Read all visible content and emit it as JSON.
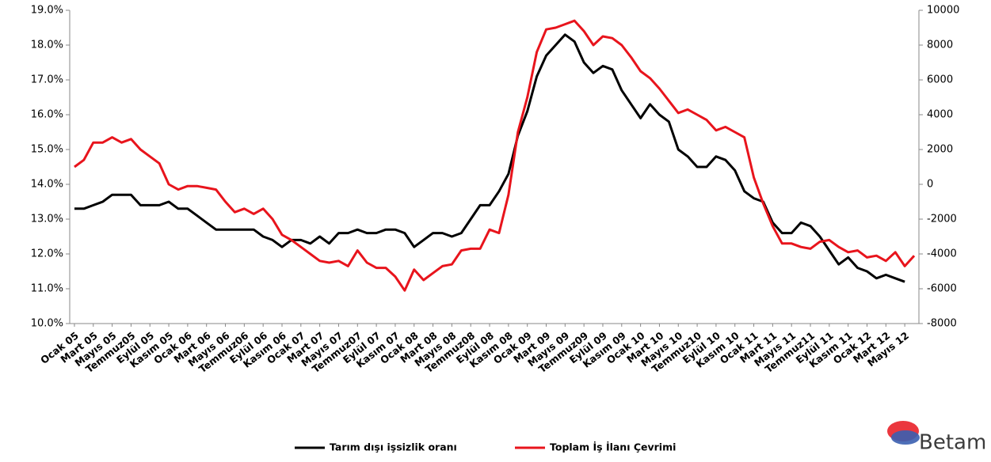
{
  "chart_data": {
    "type": "line",
    "categories": [
      "Ocak 05",
      null,
      "Mart 05",
      null,
      "Mayıs 05",
      null,
      "Temmuz05",
      null,
      "Eylül 05",
      null,
      "Kasım 05",
      null,
      "Ocak 06",
      null,
      "Mart 06",
      null,
      "Mayıs 06",
      null,
      "Temmuz06",
      null,
      "Eylül 06",
      null,
      "Kasım 06",
      null,
      "Ocak 07",
      null,
      "Mart 07",
      null,
      "Mayıs 07",
      null,
      "Temmuz07",
      null,
      "Eylül 07",
      null,
      "Kasım 07",
      null,
      "Ocak 08",
      null,
      "Mart 08",
      null,
      "Mayıs 08",
      null,
      "Temmuz08",
      null,
      "Eylül 08",
      null,
      "Kasım 08",
      null,
      "Ocak 09",
      null,
      "Mart 09",
      null,
      "Mayıs 09",
      null,
      "Temmuz09",
      null,
      "Eylül 09",
      null,
      "Kasım 09",
      null,
      "Ocak 10",
      null,
      "Mart 10",
      null,
      "Mayıs 10",
      null,
      "Temmuz10",
      null,
      "Eylül 10",
      null,
      "Kasım 10",
      null,
      "Ocak 11",
      null,
      "Mart 11",
      null,
      "Mayıs 11",
      null,
      "Temmuz11",
      null,
      "Eylül 11",
      null,
      "Kasım 11",
      null,
      "Ocak 12",
      null,
      "Mart 12",
      null,
      "Mayıs 12",
      null
    ],
    "series": [
      {
        "name": "Tarım dışı işsizlik oranı",
        "color": "#000000",
        "axis": "y",
        "values": [
          13.3,
          13.3,
          13.4,
          13.5,
          13.7,
          13.7,
          13.7,
          13.4,
          13.4,
          13.4,
          13.5,
          13.3,
          13.3,
          13.1,
          12.9,
          12.7,
          12.7,
          12.7,
          12.7,
          12.7,
          12.5,
          12.4,
          12.2,
          12.4,
          12.4,
          12.3,
          12.5,
          12.3,
          12.6,
          12.6,
          12.7,
          12.6,
          12.6,
          12.7,
          12.7,
          12.6,
          12.2,
          12.4,
          12.6,
          12.6,
          12.5,
          12.6,
          13.0,
          13.4,
          13.4,
          13.8,
          14.3,
          15.4,
          16.1,
          17.1,
          17.7,
          18.0,
          18.3,
          18.1,
          17.5,
          17.2,
          17.4,
          17.3,
          16.7,
          16.3,
          15.9,
          16.3,
          16.0,
          15.8,
          15.0,
          14.8,
          14.5,
          14.5,
          14.8,
          14.7,
          14.4,
          13.8,
          13.6,
          13.5,
          12.9,
          12.6,
          12.6,
          12.9,
          12.8,
          12.5,
          12.1,
          11.7,
          11.9,
          11.6,
          11.5,
          11.3,
          11.4,
          11.3,
          11.2,
          null
        ]
      },
      {
        "name": "Toplam İş İlanı Çevrimi",
        "color": "#e8141c",
        "axis": "y2",
        "values": [
          1000,
          1400,
          2400,
          2400,
          2700,
          2400,
          2600,
          2000,
          1600,
          1200,
          0,
          -300,
          -100,
          -100,
          -200,
          -300,
          -1000,
          -1600,
          -1400,
          -1700,
          -1400,
          -2000,
          -2900,
          -3200,
          -3600,
          -4000,
          -4400,
          -4500,
          -4400,
          -4700,
          -3800,
          -4500,
          -4800,
          -4800,
          -5300,
          -6100,
          -4900,
          -5500,
          -5100,
          -4700,
          -4600,
          -3800,
          -3700,
          -3700,
          -2600,
          -2800,
          -600,
          3000,
          5000,
          7600,
          8900,
          9000,
          9200,
          9400,
          8800,
          8000,
          8500,
          8400,
          8000,
          7300,
          6500,
          6100,
          5500,
          4800,
          4100,
          4300,
          4000,
          3700,
          3100,
          3300,
          3000,
          2700,
          400,
          -1100,
          -2400,
          -3400,
          -3400,
          -3600,
          -3700,
          -3300,
          -3200,
          -3600,
          -3900,
          -3800,
          -4200,
          -4100,
          -4400,
          -3900,
          -4700,
          -4100
        ]
      }
    ],
    "ylim": [
      10,
      19
    ],
    "yticks": [
      {
        "value": 10,
        "label": "10.0%"
      },
      {
        "value": 11,
        "label": "11.0%"
      },
      {
        "value": 12,
        "label": "12.0%"
      },
      {
        "value": 13,
        "label": "13.0%"
      },
      {
        "value": 14,
        "label": "14.0%"
      },
      {
        "value": 15,
        "label": "15.0%"
      },
      {
        "value": 16,
        "label": "16.0%"
      },
      {
        "value": 17,
        "label": "17.0%"
      },
      {
        "value": 18,
        "label": "18.0%"
      },
      {
        "value": 19,
        "label": "19.0%"
      }
    ],
    "y2lim": [
      -8000,
      10000
    ],
    "y2ticks": [
      -8000,
      -6000,
      -4000,
      -2000,
      0,
      2000,
      4000,
      6000,
      8000,
      10000
    ],
    "grid": false,
    "legend": "bottom",
    "logo": "Betam"
  }
}
